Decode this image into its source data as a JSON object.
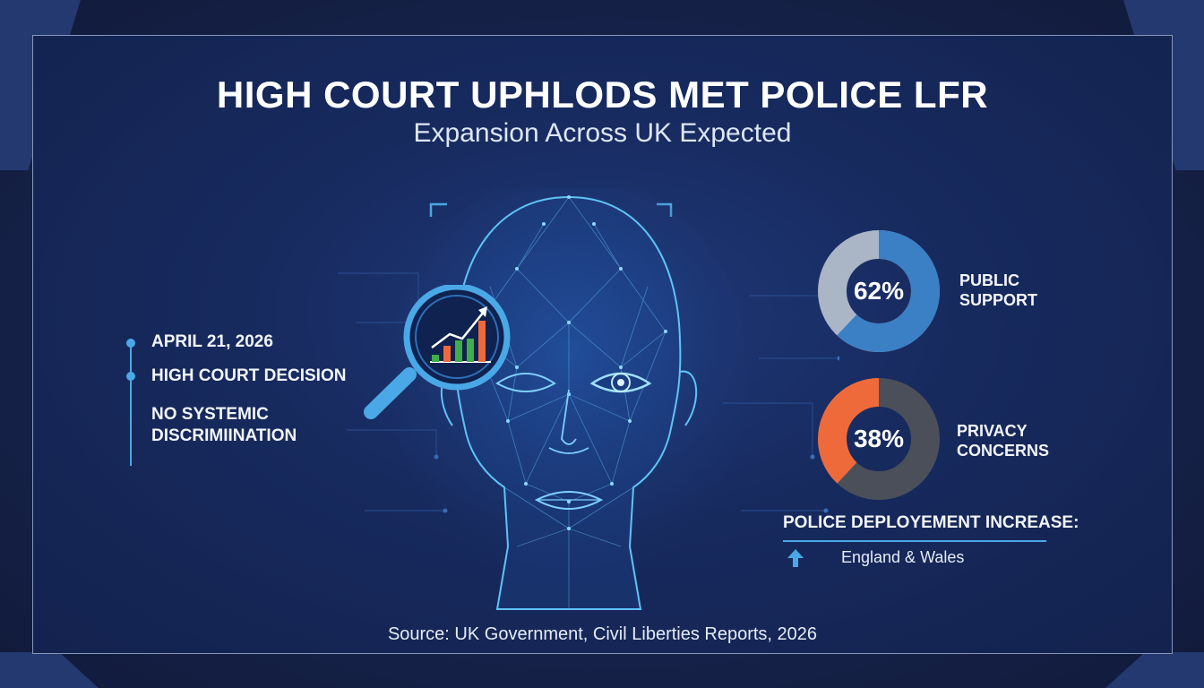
{
  "header": {
    "title": "HIGH COURT UPHLODS MET POLICE LFR",
    "subtitle": "Expansion Across UK Expected"
  },
  "timeline": {
    "items": [
      {
        "label": "APRIL 21, 2026"
      },
      {
        "label": "HIGH COURT DECISION"
      },
      {
        "label": "NO SYSTEMIC",
        "label2": "DISCRIMIINATION"
      }
    ]
  },
  "stats": {
    "public_support": {
      "value": 62,
      "value_text": "62%",
      "label_line1": "PUBLIC",
      "label_line2": "SUPPORT",
      "color": "#3b7fc4",
      "rest_color": "#aab6c6"
    },
    "privacy_concerns": {
      "value": 38,
      "value_text": "38%",
      "label_line1": "PRIVACY",
      "label_line2": "CONCERNS",
      "color": "#ef6a3a",
      "rest_color": "#4b4f59"
    }
  },
  "deployment": {
    "title": "POLICE DEPLOYEMENT INCREASE:",
    "region": "England & Wales",
    "arrow_icon": "arrow-up-icon",
    "arrow_color": "#4aa8e6"
  },
  "footer": {
    "source": "Source: UK Government, Civil Liberties Reports, 2026"
  },
  "colors": {
    "accent": "#4aa8e6",
    "background": "#16224a"
  }
}
